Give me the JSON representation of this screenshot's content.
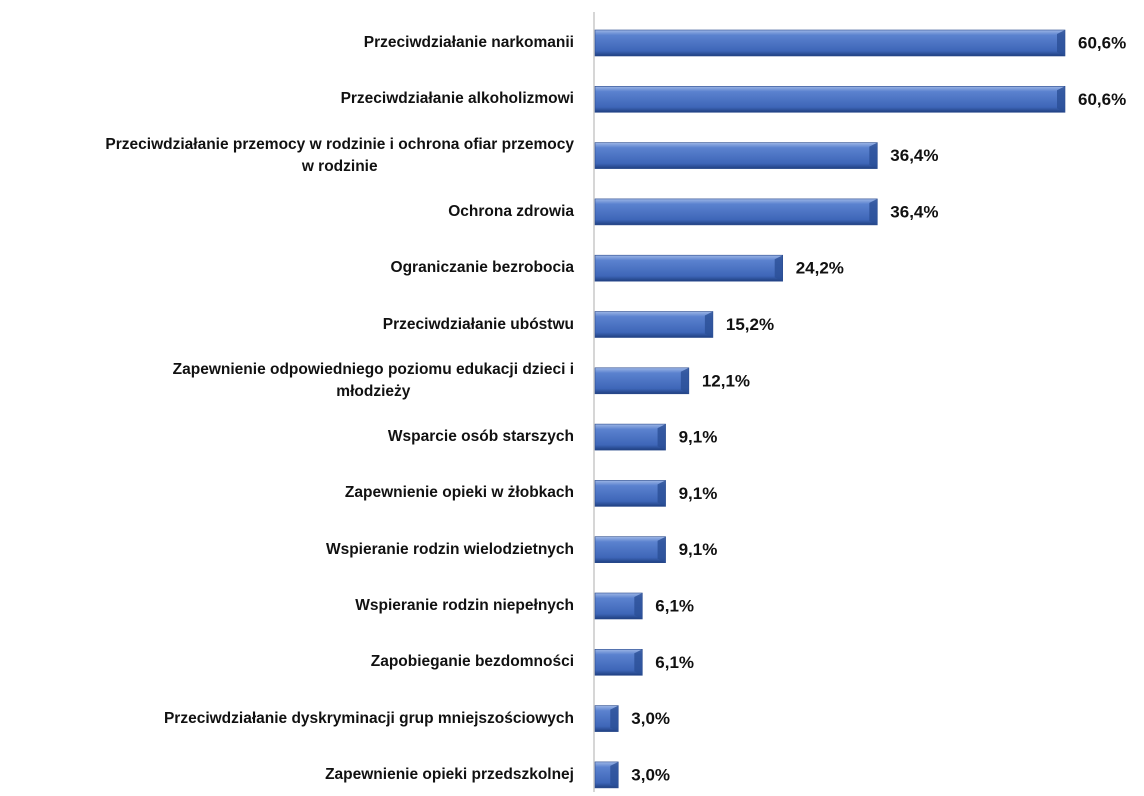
{
  "chart_data": {
    "type": "bar",
    "orientation": "horizontal",
    "categories": [
      "Przeciwdziałanie narkomanii",
      "Przeciwdziałanie alkoholizmowi",
      [
        "Przeciwdziałanie przemocy w rodzinie i ochrona ofiar przemocy",
        "w rodzinie"
      ],
      "Ochrona zdrowia",
      "Ograniczanie bezrobocia",
      "Przeciwdziałanie ubóstwu",
      [
        "Zapewnienie odpowiedniego poziomu edukacji dzieci i",
        "młodzieży"
      ],
      "Wsparcie osób starszych",
      "Zapewnienie opieki w żłobkach",
      "Wspieranie rodzin wielodzietnych",
      "Wspieranie rodzin niepełnych",
      "Zapobieganie bezdomności",
      "Przeciwdziałanie dyskryminacji grup mniejszościowych",
      "Zapewnienie opieki przedszkolnej"
    ],
    "values": [
      60.6,
      60.6,
      36.4,
      36.4,
      24.2,
      15.2,
      12.1,
      9.1,
      9.1,
      9.1,
      6.1,
      6.1,
      3.0,
      3.0
    ],
    "value_labels": [
      "60,6%",
      "60,6%",
      "36,4%",
      "36,4%",
      "24,2%",
      "15,2%",
      "12,1%",
      "9,1%",
      "9,1%",
      "9,1%",
      "6,1%",
      "6,1%",
      "3,0%",
      "3,0%"
    ],
    "color": "#4a72c4"
  }
}
